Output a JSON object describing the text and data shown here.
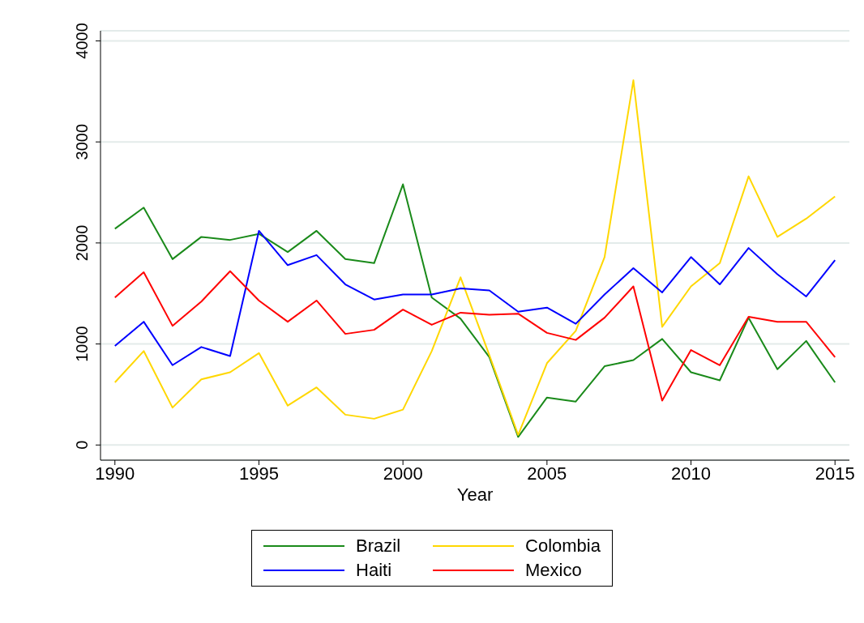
{
  "chart_data": {
    "type": "line",
    "xlabel": "Year",
    "x": [
      1990,
      1991,
      1992,
      1993,
      1994,
      1995,
      1996,
      1997,
      1998,
      1999,
      2000,
      2001,
      2002,
      2003,
      2004,
      2005,
      2006,
      2007,
      2008,
      2009,
      2010,
      2011,
      2012,
      2013,
      2014,
      2015
    ],
    "series": [
      {
        "name": "Brazil",
        "color": "#1a8a1a",
        "values": [
          2140,
          2350,
          1840,
          2060,
          2030,
          2090,
          1910,
          2120,
          1840,
          1800,
          2580,
          1460,
          1250,
          870,
          80,
          470,
          430,
          780,
          840,
          1050,
          720,
          640,
          1260,
          750,
          1030,
          620
        ]
      },
      {
        "name": "Colombia",
        "color": "#ffd700",
        "values": [
          620,
          930,
          370,
          650,
          720,
          910,
          390,
          570,
          300,
          260,
          350,
          930,
          1660,
          890,
          100,
          810,
          1130,
          1860,
          3610,
          1170,
          1570,
          1800,
          2660,
          2060,
          2240,
          2460
        ]
      },
      {
        "name": "Haiti",
        "color": "#0000ff",
        "values": [
          980,
          1220,
          790,
          970,
          880,
          2120,
          1780,
          1880,
          1590,
          1440,
          1490,
          1490,
          1550,
          1530,
          1320,
          1360,
          1200,
          1490,
          1750,
          1510,
          1860,
          1590,
          1950,
          1690,
          1470,
          1830
        ]
      },
      {
        "name": "Mexico",
        "color": "#ff0000",
        "values": [
          1460,
          1710,
          1180,
          1420,
          1720,
          1430,
          1220,
          1430,
          1100,
          1140,
          1340,
          1190,
          1310,
          1290,
          1300,
          1110,
          1040,
          1260,
          1570,
          440,
          940,
          790,
          1270,
          1220,
          1220,
          870
        ]
      }
    ],
    "xlim": [
      1989.5,
      2015.5
    ],
    "xticks": [
      1990,
      1995,
      2000,
      2005,
      2010,
      2015
    ],
    "ylim": [
      -150,
      4100
    ],
    "yticks": [
      0,
      1000,
      2000,
      3000,
      4000
    ],
    "grid": "y",
    "legend": "bottom",
    "line_style": "solid",
    "marker": "none"
  }
}
